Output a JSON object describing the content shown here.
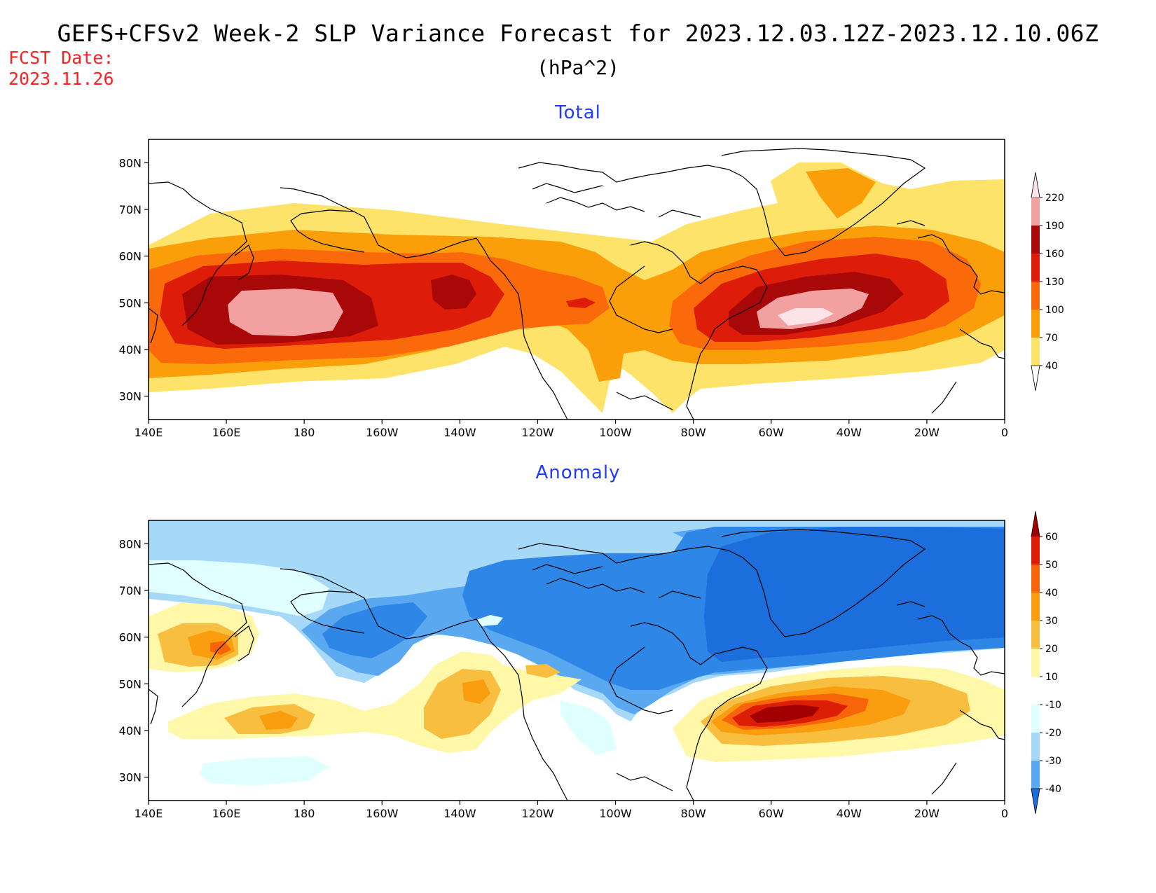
{
  "header": {
    "title": "GEFS+CFSv2 Week-2 SLP Variance Forecast for 2023.12.03.12Z-2023.12.10.06Z",
    "units": "(hPa^2)",
    "fcst_label": "FCST Date:",
    "fcst_date": "2023.11.26"
  },
  "axes": {
    "lon_labels": [
      "140E",
      "160E",
      "180",
      "160W",
      "140W",
      "120W",
      "100W",
      "80W",
      "60W",
      "40W",
      "20W",
      "0"
    ],
    "lat_labels": [
      "80N",
      "70N",
      "60N",
      "50N",
      "40N",
      "30N"
    ]
  },
  "panels": {
    "total": {
      "title": "Total",
      "colorbar": {
        "levels": [
          "220",
          "190",
          "160",
          "130",
          "100",
          "70",
          "40"
        ],
        "colors": [
          "#fce4e8",
          "#f2a0a0",
          "#a80808",
          "#de1c0a",
          "#fa6a0a",
          "#fa9f0a",
          "#fde36a"
        ]
      }
    },
    "anomaly": {
      "title": "Anomaly",
      "colorbar": {
        "levels": [
          "60",
          "50",
          "40",
          "30",
          "20",
          "10",
          "-10",
          "-20",
          "-30",
          "-40"
        ],
        "colors": [
          "#a00000",
          "#dc1e06",
          "#f8640a",
          "#fa9e10",
          "#f8be40",
          "#fef8a8",
          "#ffffff",
          "#e0ffff",
          "#a6d8f8",
          "#5aa8f0",
          "#1c6edc"
        ]
      }
    }
  },
  "palette": {
    "total_fills": [
      "#fde36a",
      "#fa9f0a",
      "#fa6a0a",
      "#de1c0a",
      "#a80808",
      "#f2a0a0",
      "#fce4e8"
    ],
    "anomaly_pos": [
      "#fef8a8",
      "#f8be40",
      "#fa9e10",
      "#f8640a",
      "#dc1e06",
      "#a00000"
    ],
    "anomaly_neg": [
      "#e0ffff",
      "#a6d8f8",
      "#5aa8f0",
      "#2e86e6",
      "#1c6edc"
    ]
  }
}
